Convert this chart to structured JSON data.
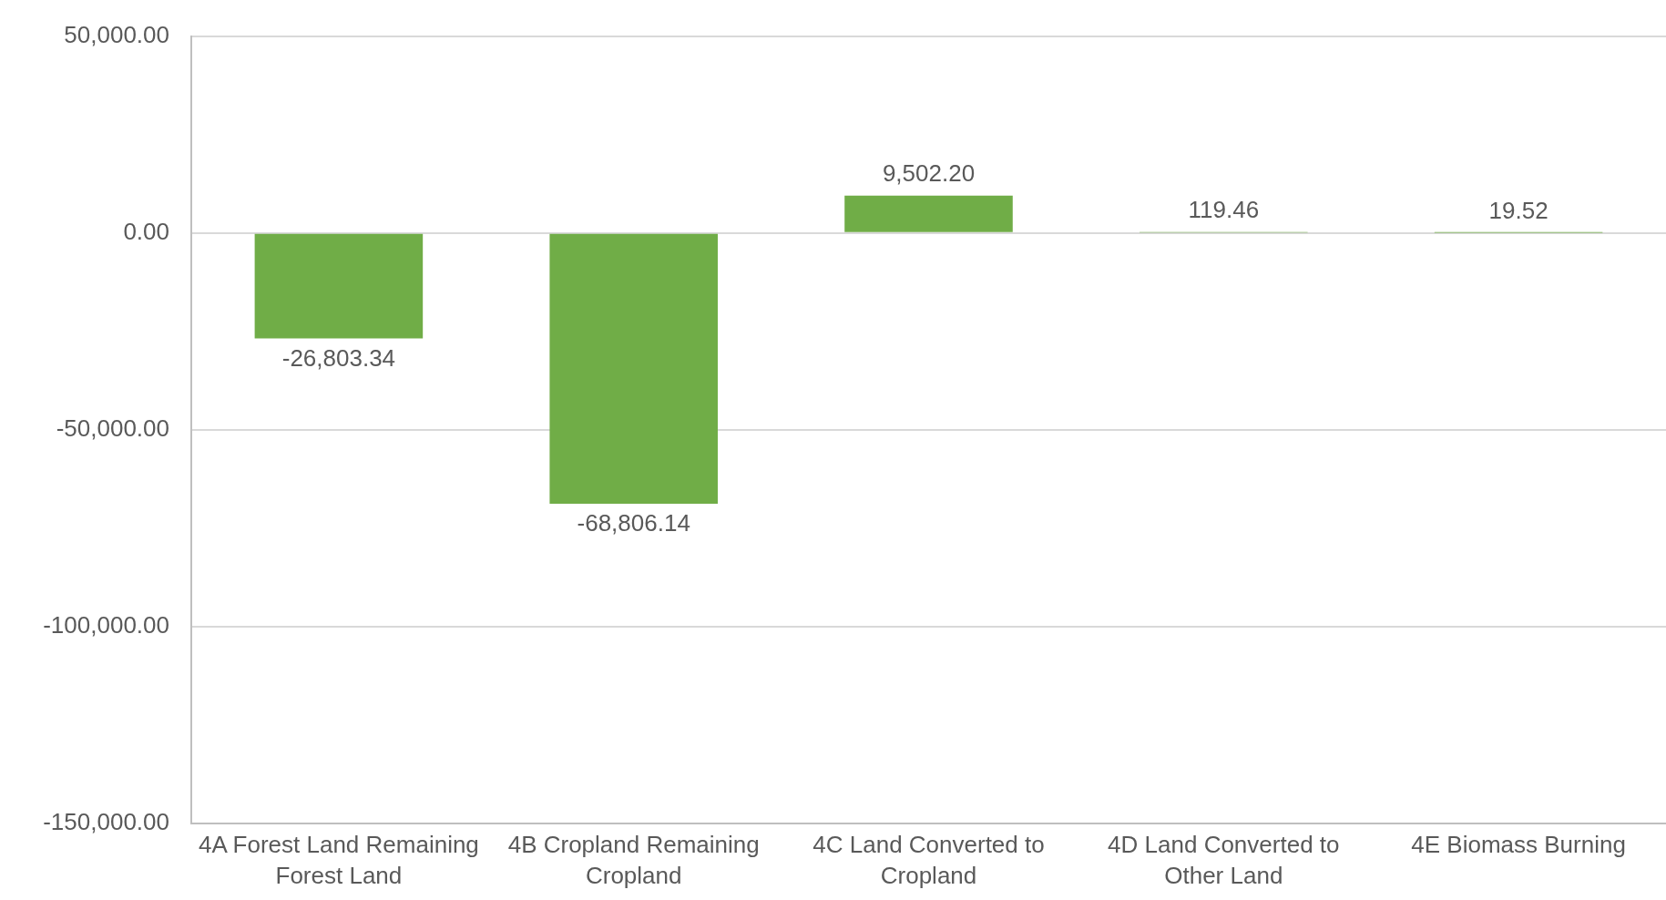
{
  "chart_data": {
    "type": "bar",
    "categories": [
      "4A Forest Land Remaining Forest Land",
      "4B Cropland Remaining Cropland",
      "4C Land Converted to Cropland",
      "4D Land Converted to Other Land",
      "4E Biomass Burning"
    ],
    "values": [
      -26803.34,
      -68806.14,
      9502.2,
      119.46,
      19.52
    ],
    "value_labels": [
      "-26,803.34",
      "-68,806.14",
      "9,502.20",
      "119.46",
      "19.52"
    ],
    "color": "#70ad47",
    "ylim": [
      -150000,
      50000
    ],
    "yticks": [
      {
        "value": -150000,
        "label": "-150,000.00"
      },
      {
        "value": -100000,
        "label": "-100,000.00"
      },
      {
        "value": -50000,
        "label": "-50,000.00"
      },
      {
        "value": 0,
        "label": "0.00"
      },
      {
        "value": 50000,
        "label": "50,000.00"
      }
    ],
    "grid": "y"
  }
}
